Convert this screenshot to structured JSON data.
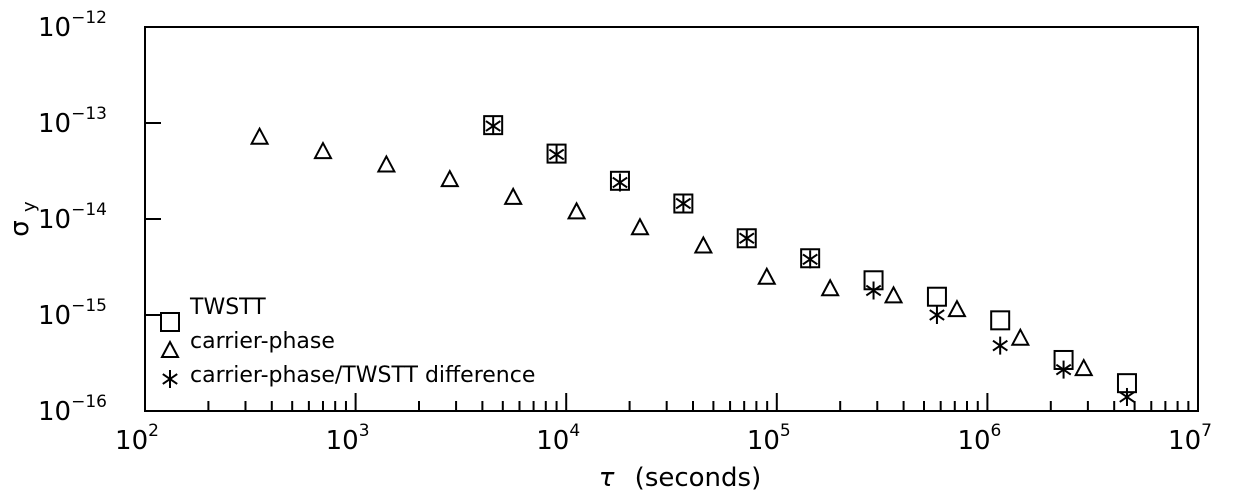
{
  "chart_data": {
    "type": "scatter",
    "title": "",
    "xlabel": {
      "symbol": "τ",
      "text": "(seconds)"
    },
    "ylabel": {
      "base": "σ",
      "sub": "y"
    },
    "xscale": "log",
    "yscale": "log",
    "xlim": [
      100,
      10000000
    ],
    "ylim": [
      1e-16,
      1e-12
    ],
    "grid": false,
    "legend_position": "bottom-left",
    "x_ticks": [
      {
        "base": "10",
        "exp": "2"
      },
      {
        "base": "10",
        "exp": "3"
      },
      {
        "base": "10",
        "exp": "4"
      },
      {
        "base": "10",
        "exp": "5"
      },
      {
        "base": "10",
        "exp": "6"
      },
      {
        "base": "10",
        "exp": "7"
      }
    ],
    "y_ticks": [
      {
        "base": "10",
        "exp": "−16"
      },
      {
        "base": "10",
        "exp": "−15"
      },
      {
        "base": "10",
        "exp": "−14"
      },
      {
        "base": "10",
        "exp": "−13"
      },
      {
        "base": "10",
        "exp": "−12"
      }
    ],
    "series": [
      {
        "name": "TWSTT",
        "marker": "square",
        "x": [
          4500,
          9000,
          18000,
          36000,
          72000,
          144000,
          288000,
          576000,
          1150000,
          2300000,
          4600000
        ],
        "y": [
          9.5e-14,
          4.8e-14,
          2.5e-14,
          1.45e-14,
          6.3e-15,
          3.9e-15,
          2.3e-15,
          1.55e-15,
          8.8e-16,
          3.4e-16,
          1.95e-16
        ]
      },
      {
        "name": "carrier-phase",
        "marker": "triangle",
        "x": [
          350,
          700,
          1400,
          2800,
          5600,
          11200,
          22400,
          44800,
          89600,
          179200,
          358400,
          716800,
          1433600,
          2867200
        ],
        "y": [
          7.2e-14,
          5.1e-14,
          3.7e-14,
          2.6e-14,
          1.7e-14,
          1.2e-14,
          8.2e-15,
          5.3e-15,
          2.5e-15,
          1.9e-15,
          1.6e-15,
          1.15e-15,
          5.8e-16,
          2.8e-16
        ]
      },
      {
        "name": "carrier-phase/TWSTT difference",
        "marker": "asterisk",
        "x": [
          4500,
          9000,
          18000,
          36000,
          72000,
          144000,
          288000,
          576000,
          1150000,
          2300000,
          4600000
        ],
        "y": [
          9.3e-14,
          4.7e-14,
          2.4e-14,
          1.45e-14,
          6.3e-15,
          3.8e-15,
          1.8e-15,
          1e-15,
          4.8e-16,
          2.7e-16,
          1.4e-16
        ]
      }
    ]
  }
}
